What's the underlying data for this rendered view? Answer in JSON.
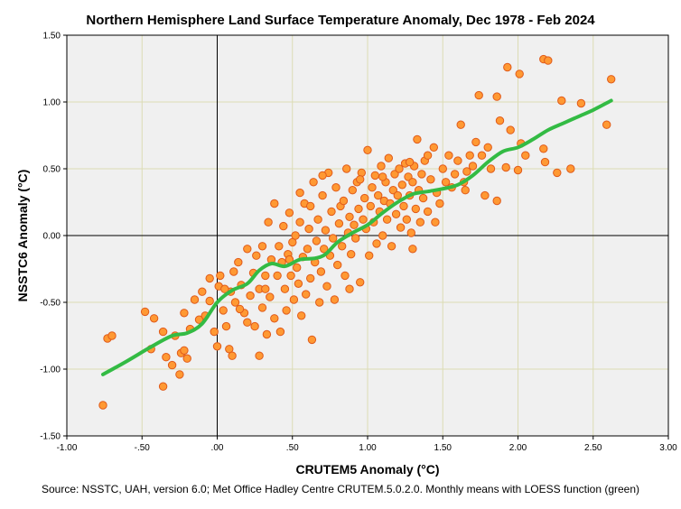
{
  "chart_data": {
    "type": "scatter",
    "title": "Northern Hemisphere Land Surface Temperature Anomaly, Dec 1978 - Feb 2024",
    "xlabel": "CRUTEM5 Anomaly (°C)",
    "ylabel": "NSSTC6 Anomaly (°C)",
    "caption": "Source: NSSTC, UAH, version 6.0; Met Office Hadley Centre CRUTEM.5.0.2.0. Monthly means with LOESS function (green)",
    "xlim": [
      -1.0,
      3.0
    ],
    "ylim": [
      -1.5,
      1.5
    ],
    "grid": true,
    "x_ticks": [
      {
        "value": -1.0,
        "label": "-1.00"
      },
      {
        "value": -0.5,
        "label": "-.50"
      },
      {
        "value": 0.0,
        "label": ".00"
      },
      {
        "value": 0.5,
        "label": ".50"
      },
      {
        "value": 1.0,
        "label": "1.00"
      },
      {
        "value": 1.5,
        "label": "1.50"
      },
      {
        "value": 2.0,
        "label": "2.00"
      },
      {
        "value": 2.5,
        "label": "2.50"
      },
      {
        "value": 3.0,
        "label": "3.00"
      }
    ],
    "y_ticks": [
      {
        "value": -1.5,
        "label": "-1.50"
      },
      {
        "value": -1.0,
        "label": "-1.00"
      },
      {
        "value": -0.5,
        "label": "-0.50"
      },
      {
        "value": 0.0,
        "label": "0.00"
      },
      {
        "value": 0.5,
        "label": "0.50"
      },
      {
        "value": 1.0,
        "label": "1.00"
      },
      {
        "value": 1.5,
        "label": "1.50"
      }
    ],
    "reference_lines": {
      "x": 0.0,
      "y": 0.0
    },
    "colors": {
      "plot_background": "#f0f0f0",
      "grid": "#dcdcb4",
      "point_fill": "#ff9933",
      "point_stroke": "#e05a1a",
      "loess": "#33bb44",
      "reference": "#000000"
    },
    "series": [
      {
        "name": "Monthly means",
        "points": [
          [
            -0.76,
            -1.27
          ],
          [
            -0.73,
            -0.77
          ],
          [
            -0.7,
            -0.75
          ],
          [
            -0.48,
            -0.57
          ],
          [
            -0.44,
            -0.85
          ],
          [
            -0.42,
            -0.62
          ],
          [
            -0.36,
            -1.13
          ],
          [
            -0.36,
            -0.72
          ],
          [
            -0.34,
            -0.91
          ],
          [
            -0.3,
            -0.97
          ],
          [
            -0.28,
            -0.75
          ],
          [
            -0.25,
            -1.04
          ],
          [
            -0.24,
            -0.88
          ],
          [
            -0.22,
            -0.86
          ],
          [
            -0.2,
            -0.92
          ],
          [
            -0.22,
            -0.58
          ],
          [
            -0.18,
            -0.7
          ],
          [
            -0.15,
            -0.48
          ],
          [
            -0.12,
            -0.63
          ],
          [
            -0.1,
            -0.42
          ],
          [
            -0.08,
            -0.6
          ],
          [
            -0.05,
            -0.49
          ],
          [
            -0.02,
            -0.72
          ],
          [
            0.0,
            -0.83
          ],
          [
            0.01,
            -0.38
          ],
          [
            0.02,
            -0.3
          ],
          [
            0.04,
            -0.56
          ],
          [
            0.06,
            -0.68
          ],
          [
            0.08,
            -0.85
          ],
          [
            0.1,
            -0.9
          ],
          [
            0.09,
            -0.42
          ],
          [
            0.11,
            -0.27
          ],
          [
            0.12,
            -0.5
          ],
          [
            0.14,
            -0.2
          ],
          [
            0.16,
            -0.37
          ],
          [
            0.18,
            -0.58
          ],
          [
            0.2,
            -0.1
          ],
          [
            0.2,
            -0.65
          ],
          [
            0.22,
            -0.45
          ],
          [
            0.24,
            -0.28
          ],
          [
            0.25,
            -0.68
          ],
          [
            0.26,
            -0.15
          ],
          [
            0.28,
            -0.4
          ],
          [
            0.3,
            -0.54
          ],
          [
            0.3,
            -0.08
          ],
          [
            0.32,
            -0.3
          ],
          [
            0.33,
            -0.74
          ],
          [
            0.34,
            0.1
          ],
          [
            0.35,
            -0.46
          ],
          [
            0.36,
            -0.18
          ],
          [
            0.38,
            0.24
          ],
          [
            0.38,
            -0.62
          ],
          [
            0.4,
            -0.3
          ],
          [
            0.41,
            -0.08
          ],
          [
            0.42,
            -0.72
          ],
          [
            0.43,
            -0.2
          ],
          [
            0.44,
            0.07
          ],
          [
            0.45,
            -0.4
          ],
          [
            0.46,
            -0.56
          ],
          [
            0.47,
            -0.14
          ],
          [
            0.48,
            0.17
          ],
          [
            0.49,
            -0.3
          ],
          [
            0.5,
            -0.05
          ],
          [
            0.51,
            -0.48
          ],
          [
            0.52,
            0.0
          ],
          [
            0.53,
            -0.24
          ],
          [
            0.54,
            -0.36
          ],
          [
            0.55,
            0.1
          ],
          [
            0.56,
            -0.6
          ],
          [
            0.57,
            -0.16
          ],
          [
            0.58,
            0.24
          ],
          [
            0.59,
            -0.44
          ],
          [
            0.6,
            -0.1
          ],
          [
            0.61,
            0.05
          ],
          [
            0.62,
            -0.32
          ],
          [
            0.63,
            -0.78
          ],
          [
            0.64,
            0.4
          ],
          [
            0.65,
            -0.2
          ],
          [
            0.66,
            -0.04
          ],
          [
            0.67,
            0.12
          ],
          [
            0.68,
            -0.5
          ],
          [
            0.69,
            -0.27
          ],
          [
            0.7,
            0.3
          ],
          [
            0.71,
            -0.1
          ],
          [
            0.72,
            0.04
          ],
          [
            0.73,
            -0.38
          ],
          [
            0.74,
            0.47
          ],
          [
            0.75,
            -0.15
          ],
          [
            0.76,
            0.18
          ],
          [
            0.77,
            -0.02
          ],
          [
            0.78,
            -0.48
          ],
          [
            0.79,
            0.36
          ],
          [
            0.8,
            -0.22
          ],
          [
            0.81,
            0.09
          ],
          [
            0.82,
            0.22
          ],
          [
            0.83,
            -0.08
          ],
          [
            0.84,
            0.26
          ],
          [
            0.85,
            -0.3
          ],
          [
            0.86,
            0.5
          ],
          [
            0.87,
            0.02
          ],
          [
            0.88,
            0.14
          ],
          [
            0.89,
            -0.14
          ],
          [
            0.9,
            0.34
          ],
          [
            0.91,
            0.08
          ],
          [
            0.92,
            -0.02
          ],
          [
            0.93,
            0.4
          ],
          [
            0.94,
            0.2
          ],
          [
            0.95,
            -0.35
          ],
          [
            0.96,
            0.47
          ],
          [
            0.97,
            0.12
          ],
          [
            0.98,
            0.28
          ],
          [
            0.99,
            0.05
          ],
          [
            1.0,
            0.64
          ],
          [
            1.01,
            -0.15
          ],
          [
            1.02,
            0.22
          ],
          [
            1.03,
            0.36
          ],
          [
            1.04,
            0.1
          ],
          [
            1.05,
            0.45
          ],
          [
            1.06,
            -0.06
          ],
          [
            1.07,
            0.3
          ],
          [
            1.08,
            0.18
          ],
          [
            1.09,
            0.52
          ],
          [
            1.1,
            0.0
          ],
          [
            1.11,
            0.26
          ],
          [
            1.12,
            0.4
          ],
          [
            1.13,
            0.12
          ],
          [
            1.14,
            0.58
          ],
          [
            1.15,
            0.24
          ],
          [
            1.16,
            -0.08
          ],
          [
            1.17,
            0.34
          ],
          [
            1.18,
            0.46
          ],
          [
            1.19,
            0.16
          ],
          [
            1.2,
            0.3
          ],
          [
            1.21,
            0.5
          ],
          [
            1.22,
            0.06
          ],
          [
            1.23,
            0.38
          ],
          [
            1.24,
            0.22
          ],
          [
            1.25,
            0.54
          ],
          [
            1.26,
            0.12
          ],
          [
            1.27,
            0.44
          ],
          [
            1.28,
            0.3
          ],
          [
            1.29,
            0.02
          ],
          [
            1.3,
            0.4
          ],
          [
            1.31,
            0.52
          ],
          [
            1.32,
            0.2
          ],
          [
            1.33,
            0.72
          ],
          [
            1.34,
            0.34
          ],
          [
            1.35,
            0.1
          ],
          [
            1.36,
            0.46
          ],
          [
            1.37,
            0.28
          ],
          [
            1.38,
            0.56
          ],
          [
            1.4,
            0.18
          ],
          [
            1.42,
            0.42
          ],
          [
            1.44,
            0.66
          ],
          [
            1.46,
            0.32
          ],
          [
            1.48,
            0.24
          ],
          [
            1.5,
            0.5
          ],
          [
            1.52,
            0.4
          ],
          [
            1.54,
            0.6
          ],
          [
            1.56,
            0.36
          ],
          [
            1.58,
            0.46
          ],
          [
            1.6,
            0.56
          ],
          [
            1.62,
            0.83
          ],
          [
            1.64,
            0.4
          ],
          [
            1.66,
            0.48
          ],
          [
            1.68,
            0.6
          ],
          [
            1.7,
            0.52
          ],
          [
            1.72,
            0.7
          ],
          [
            1.74,
            1.05
          ],
          [
            1.76,
            0.6
          ],
          [
            1.78,
            0.3
          ],
          [
            1.8,
            0.66
          ],
          [
            1.82,
            0.5
          ],
          [
            1.86,
            1.04
          ],
          [
            1.86,
            0.26
          ],
          [
            1.88,
            0.86
          ],
          [
            1.92,
            0.51
          ],
          [
            1.93,
            1.26
          ],
          [
            1.95,
            0.79
          ],
          [
            2.0,
            0.49
          ],
          [
            2.01,
            1.21
          ],
          [
            2.02,
            0.69
          ],
          [
            2.05,
            0.6
          ],
          [
            2.17,
            1.32
          ],
          [
            2.17,
            0.65
          ],
          [
            2.18,
            0.55
          ],
          [
            2.2,
            1.31
          ],
          [
            2.26,
            0.47
          ],
          [
            2.29,
            1.01
          ],
          [
            2.35,
            0.5
          ],
          [
            2.42,
            0.99
          ],
          [
            2.59,
            0.83
          ],
          [
            2.62,
            1.17
          ],
          [
            1.4,
            0.6
          ],
          [
            1.28,
            0.55
          ],
          [
            0.95,
            0.42
          ],
          [
            0.7,
            0.45
          ],
          [
            0.55,
            0.32
          ],
          [
            0.15,
            -0.55
          ],
          [
            0.05,
            -0.4
          ],
          [
            -0.05,
            -0.32
          ],
          [
            0.28,
            -0.9
          ],
          [
            0.62,
            0.22
          ],
          [
            1.1,
            0.44
          ],
          [
            1.45,
            0.1
          ],
          [
            1.65,
            0.34
          ],
          [
            1.3,
            -0.1
          ],
          [
            0.88,
            -0.4
          ],
          [
            0.48,
            -0.18
          ],
          [
            0.32,
            -0.4
          ]
        ]
      },
      {
        "name": "LOESS",
        "points": [
          [
            -0.76,
            -1.04
          ],
          [
            -0.6,
            -0.94
          ],
          [
            -0.45,
            -0.84
          ],
          [
            -0.3,
            -0.75
          ],
          [
            -0.2,
            -0.73
          ],
          [
            -0.1,
            -0.66
          ],
          [
            0.0,
            -0.5
          ],
          [
            0.1,
            -0.41
          ],
          [
            0.2,
            -0.36
          ],
          [
            0.28,
            -0.26
          ],
          [
            0.36,
            -0.21
          ],
          [
            0.45,
            -0.23
          ],
          [
            0.55,
            -0.18
          ],
          [
            0.65,
            -0.17
          ],
          [
            0.72,
            -0.14
          ],
          [
            0.8,
            -0.05
          ],
          [
            0.9,
            0.02
          ],
          [
            1.0,
            0.08
          ],
          [
            1.1,
            0.17
          ],
          [
            1.2,
            0.25
          ],
          [
            1.3,
            0.31
          ],
          [
            1.4,
            0.33
          ],
          [
            1.5,
            0.35
          ],
          [
            1.6,
            0.38
          ],
          [
            1.7,
            0.45
          ],
          [
            1.8,
            0.55
          ],
          [
            1.9,
            0.63
          ],
          [
            2.0,
            0.66
          ],
          [
            2.1,
            0.72
          ],
          [
            2.2,
            0.79
          ],
          [
            2.3,
            0.84
          ],
          [
            2.4,
            0.89
          ],
          [
            2.5,
            0.94
          ],
          [
            2.62,
            1.01
          ]
        ]
      }
    ]
  }
}
